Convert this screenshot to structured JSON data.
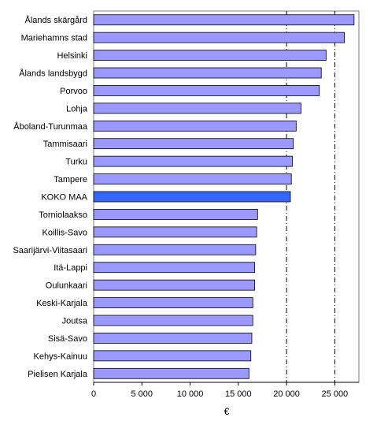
{
  "chart_data": {
    "type": "bar",
    "orientation": "horizontal",
    "categories": [
      "Ålands skärgård",
      "Mariehamns stad",
      "Helsinki",
      "Ålands landsbygd",
      "Porvoo",
      "Lohja",
      "Åboland-Turunmaa",
      "Tammisaari",
      "Turku",
      "Tampere",
      "KOKO MAA",
      "Torniolaakso",
      "Koillis-Savo",
      "Saarijärvi-Viitasaari",
      "Itä-Lappi",
      "Oulunkaari",
      "Keski-Karjala",
      "Joutsa",
      "Sisä-Savo",
      "Kehys-Kainuu",
      "Pielisen Karjala"
    ],
    "values": [
      27000,
      26000,
      24100,
      23600,
      23400,
      21500,
      21000,
      20700,
      20600,
      20500,
      20400,
      17000,
      16900,
      16800,
      16700,
      16700,
      16500,
      16500,
      16400,
      16300,
      16100
    ],
    "highlight_category": "KOKO MAA",
    "xlim": [
      0,
      27500
    ],
    "xticks": [
      0,
      5000,
      10000,
      15000,
      20000,
      25000
    ],
    "xtick_labels": [
      "0",
      "5 000",
      "10 000",
      "15 000",
      "20 000",
      "25 000"
    ],
    "reference_lines": [
      20000,
      25000
    ],
    "xlabel": "€",
    "ylabel": "",
    "title": "",
    "grid": false,
    "colors": {
      "bar": "#9999ff",
      "highlight_bar": "#3366ff",
      "bar_border": "#000000",
      "reference_line": "#000000",
      "frame": "#808080"
    }
  }
}
